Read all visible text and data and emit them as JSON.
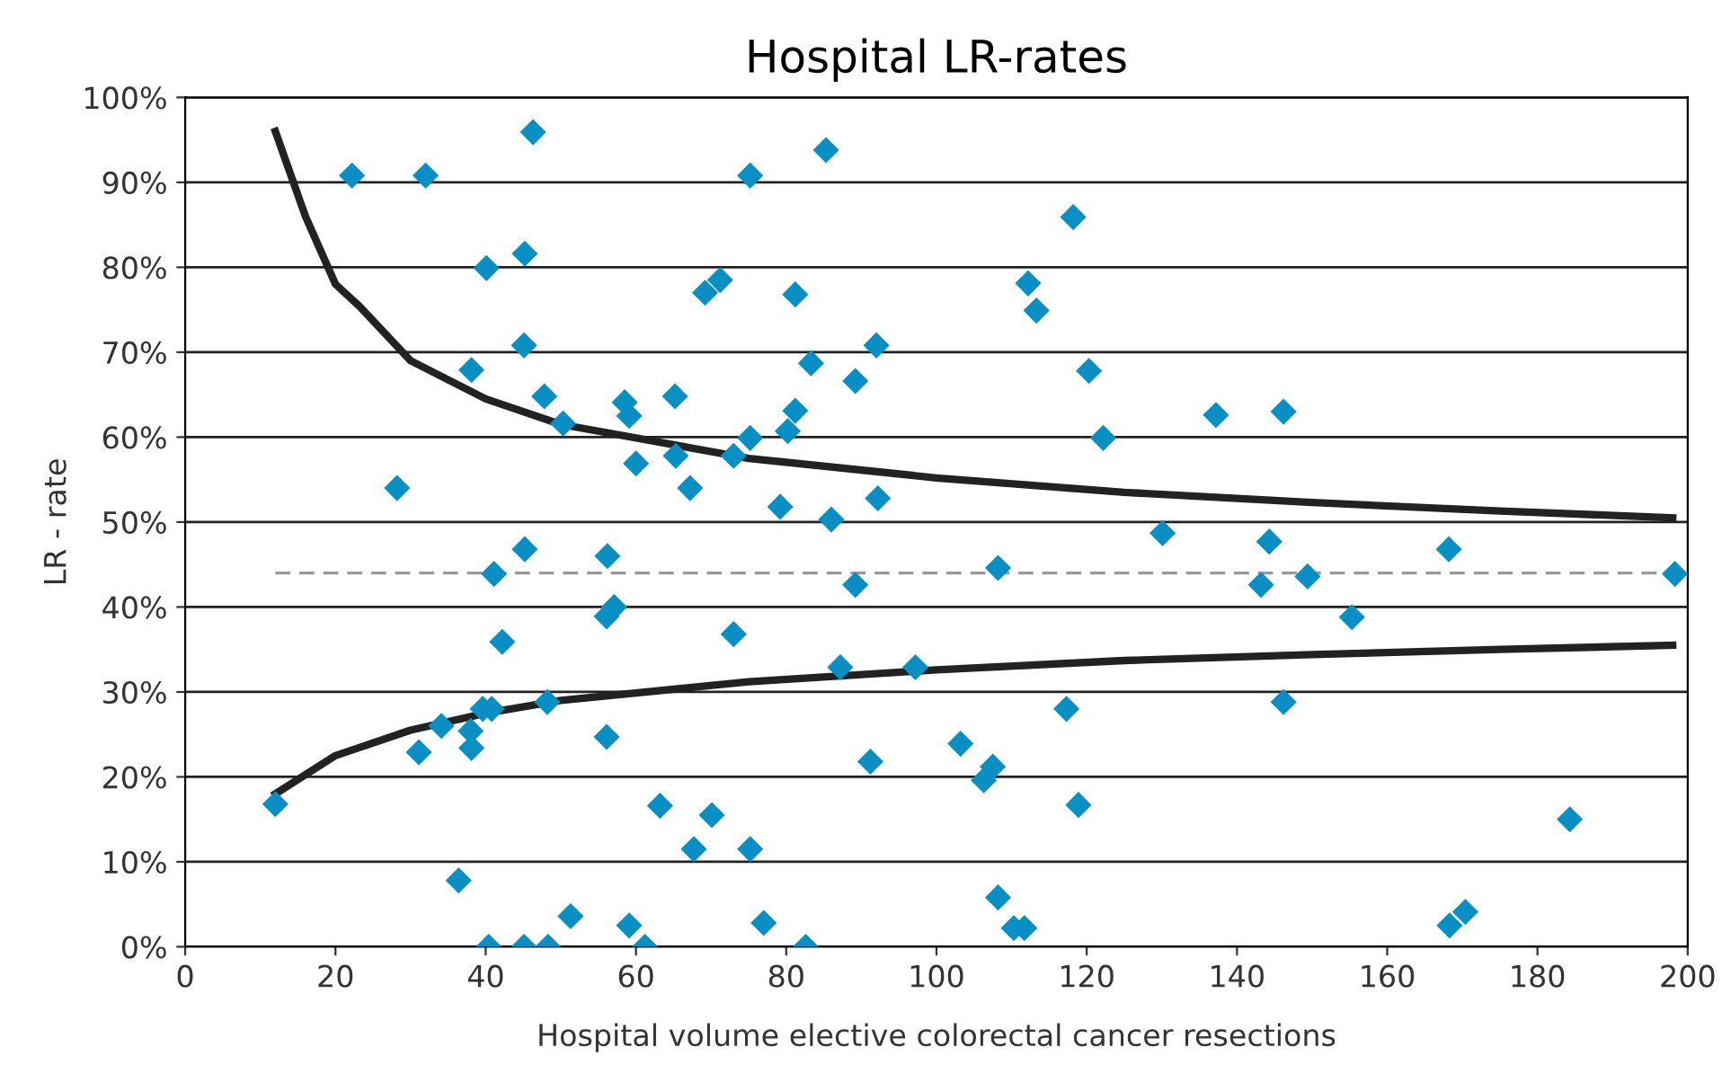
{
  "chart_data": {
    "type": "scatter",
    "title": "Hospital LR-rates",
    "xlabel": "Hospital volume elective colorectal cancer resections",
    "ylabel": "LR - rate",
    "xlim": [
      0,
      200
    ],
    "xticks": [
      0,
      20,
      40,
      60,
      80,
      100,
      120,
      140,
      160,
      180,
      200
    ],
    "ylim": [
      0,
      100
    ],
    "yticks": [
      {
        "value": 0,
        "label": "0%"
      },
      {
        "value": 10,
        "label": "10%"
      },
      {
        "value": 20,
        "label": "20%"
      },
      {
        "value": 30,
        "label": "30%"
      },
      {
        "value": 40,
        "label": "40%"
      },
      {
        "value": 50,
        "label": "50%"
      },
      {
        "value": 60,
        "label": "60%"
      },
      {
        "value": 70,
        "label": "70%"
      },
      {
        "value": 80,
        "label": "80%"
      },
      {
        "value": 90,
        "label": "90%"
      },
      {
        "value": 100,
        "label": "100%"
      }
    ],
    "grid": "y",
    "legend": false,
    "series": [
      {
        "type": "line",
        "color": "#222222",
        "line_style": "solid",
        "marker": "none",
        "x": [
          12,
          16,
          20,
          23.2,
          30,
          40,
          50,
          75,
          100,
          125,
          150,
          175,
          198
        ],
        "values": [
          96,
          86,
          78,
          75.4,
          69,
          64.5,
          61.5,
          57.5,
          55.2,
          53.5,
          52.3,
          51.3,
          50.5
        ]
      },
      {
        "type": "line",
        "color": "#222222",
        "line_style": "solid",
        "marker": "none",
        "x": [
          12,
          20,
          30,
          40,
          50,
          75,
          100,
          125,
          150,
          175,
          198
        ],
        "values": [
          18,
          22.5,
          25.5,
          27.5,
          29,
          31.2,
          32.6,
          33.7,
          34.4,
          35,
          35.5
        ]
      },
      {
        "type": "line",
        "color": "#999999",
        "line_style": "dashed",
        "marker": "none",
        "x": [
          12,
          198
        ],
        "values": [
          44,
          44
        ]
      },
      {
        "color": "#0a8fc4",
        "marker": "diamond",
        "x": [
          12.0,
          22.2,
          32.0,
          46.3,
          45.2,
          40.1,
          45.1,
          38.1,
          47.8,
          50.3,
          28.2,
          45.2,
          41.1,
          42.2,
          39.6,
          40.8,
          48.2,
          34.1,
          38.0,
          38.1,
          31.1,
          36.4,
          51.3,
          40.4,
          45.1,
          48.3,
          85.3,
          75.2,
          69.2,
          71.2,
          81.2,
          92.0,
          83.3,
          89.2,
          58.5,
          59.1,
          65.2,
          81.2,
          80.2,
          75.2,
          60.0,
          65.3,
          73.0,
          67.2,
          79.2,
          86.0,
          92.2,
          56.2,
          89.2,
          57.1,
          56.1,
          73.0,
          87.2,
          97.2,
          56.1,
          91.2,
          63.2,
          70.1,
          67.7,
          75.2,
          59.1,
          77.0,
          61.2,
          82.6,
          118.2,
          112.2,
          113.3,
          120.3,
          137.2,
          146.2,
          122.2,
          130.1,
          144.3,
          143.2,
          108.2,
          117.3,
          146.2,
          103.2,
          107.5,
          106.3,
          118.9,
          108.2,
          110.3,
          111.7,
          149.4,
          155.3,
          168.2,
          198.3,
          184.3,
          168.3,
          170.4
        ],
        "values": [
          16.8,
          90.8,
          90.8,
          95.9,
          81.6,
          79.9,
          70.8,
          67.9,
          64.8,
          61.6,
          54.0,
          46.8,
          43.9,
          35.9,
          28.0,
          28.0,
          28.8,
          26.0,
          25.4,
          23.4,
          22.9,
          7.8,
          3.6,
          0,
          0,
          0,
          93.8,
          90.8,
          77.0,
          78.5,
          76.8,
          70.8,
          68.7,
          66.6,
          64.1,
          62.5,
          64.8,
          63.1,
          60.7,
          59.9,
          56.9,
          57.8,
          57.8,
          54.0,
          51.8,
          50.3,
          52.8,
          46.0,
          42.6,
          40.0,
          38.9,
          36.8,
          32.9,
          32.9,
          24.7,
          21.8,
          16.6,
          15.5,
          11.5,
          11.5,
          2.5,
          2.8,
          0,
          0,
          85.9,
          78.1,
          74.9,
          67.8,
          62.6,
          63.0,
          59.9,
          48.7,
          47.7,
          42.6,
          44.6,
          28.0,
          28.8,
          23.9,
          21.2,
          19.6,
          16.7,
          5.8,
          2.2,
          2.2,
          43.6,
          38.8,
          46.8,
          43.9,
          15.0,
          2.5,
          4.1
        ]
      }
    ]
  }
}
